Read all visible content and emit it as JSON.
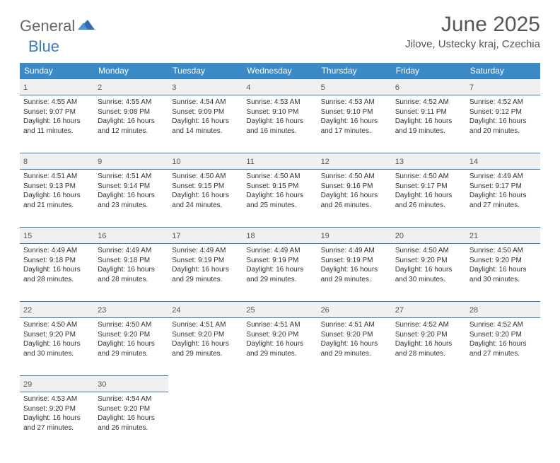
{
  "logo": {
    "general": "General",
    "blue": "Blue"
  },
  "title": "June 2025",
  "location": "Jilove, Ustecky kraj, Czechia",
  "colors": {
    "header_bg": "#3a8ac7",
    "header_text": "#ffffff",
    "daynum_bg": "#eef0f1",
    "border": "#3a7cb0",
    "logo_blue": "#3a7cc0",
    "text": "#333333"
  },
  "dayNames": [
    "Sunday",
    "Monday",
    "Tuesday",
    "Wednesday",
    "Thursday",
    "Friday",
    "Saturday"
  ],
  "weeks": [
    [
      {
        "n": "1",
        "sr": "4:55 AM",
        "ss": "9:07 PM",
        "dl": "16 hours and 11 minutes."
      },
      {
        "n": "2",
        "sr": "4:55 AM",
        "ss": "9:08 PM",
        "dl": "16 hours and 12 minutes."
      },
      {
        "n": "3",
        "sr": "4:54 AM",
        "ss": "9:09 PM",
        "dl": "16 hours and 14 minutes."
      },
      {
        "n": "4",
        "sr": "4:53 AM",
        "ss": "9:10 PM",
        "dl": "16 hours and 16 minutes."
      },
      {
        "n": "5",
        "sr": "4:53 AM",
        "ss": "9:10 PM",
        "dl": "16 hours and 17 minutes."
      },
      {
        "n": "6",
        "sr": "4:52 AM",
        "ss": "9:11 PM",
        "dl": "16 hours and 19 minutes."
      },
      {
        "n": "7",
        "sr": "4:52 AM",
        "ss": "9:12 PM",
        "dl": "16 hours and 20 minutes."
      }
    ],
    [
      {
        "n": "8",
        "sr": "4:51 AM",
        "ss": "9:13 PM",
        "dl": "16 hours and 21 minutes."
      },
      {
        "n": "9",
        "sr": "4:51 AM",
        "ss": "9:14 PM",
        "dl": "16 hours and 23 minutes."
      },
      {
        "n": "10",
        "sr": "4:50 AM",
        "ss": "9:15 PM",
        "dl": "16 hours and 24 minutes."
      },
      {
        "n": "11",
        "sr": "4:50 AM",
        "ss": "9:15 PM",
        "dl": "16 hours and 25 minutes."
      },
      {
        "n": "12",
        "sr": "4:50 AM",
        "ss": "9:16 PM",
        "dl": "16 hours and 26 minutes."
      },
      {
        "n": "13",
        "sr": "4:50 AM",
        "ss": "9:17 PM",
        "dl": "16 hours and 26 minutes."
      },
      {
        "n": "14",
        "sr": "4:49 AM",
        "ss": "9:17 PM",
        "dl": "16 hours and 27 minutes."
      }
    ],
    [
      {
        "n": "15",
        "sr": "4:49 AM",
        "ss": "9:18 PM",
        "dl": "16 hours and 28 minutes."
      },
      {
        "n": "16",
        "sr": "4:49 AM",
        "ss": "9:18 PM",
        "dl": "16 hours and 28 minutes."
      },
      {
        "n": "17",
        "sr": "4:49 AM",
        "ss": "9:19 PM",
        "dl": "16 hours and 29 minutes."
      },
      {
        "n": "18",
        "sr": "4:49 AM",
        "ss": "9:19 PM",
        "dl": "16 hours and 29 minutes."
      },
      {
        "n": "19",
        "sr": "4:49 AM",
        "ss": "9:19 PM",
        "dl": "16 hours and 29 minutes."
      },
      {
        "n": "20",
        "sr": "4:50 AM",
        "ss": "9:20 PM",
        "dl": "16 hours and 30 minutes."
      },
      {
        "n": "21",
        "sr": "4:50 AM",
        "ss": "9:20 PM",
        "dl": "16 hours and 30 minutes."
      }
    ],
    [
      {
        "n": "22",
        "sr": "4:50 AM",
        "ss": "9:20 PM",
        "dl": "16 hours and 30 minutes."
      },
      {
        "n": "23",
        "sr": "4:50 AM",
        "ss": "9:20 PM",
        "dl": "16 hours and 29 minutes."
      },
      {
        "n": "24",
        "sr": "4:51 AM",
        "ss": "9:20 PM",
        "dl": "16 hours and 29 minutes."
      },
      {
        "n": "25",
        "sr": "4:51 AM",
        "ss": "9:20 PM",
        "dl": "16 hours and 29 minutes."
      },
      {
        "n": "26",
        "sr": "4:51 AM",
        "ss": "9:20 PM",
        "dl": "16 hours and 29 minutes."
      },
      {
        "n": "27",
        "sr": "4:52 AM",
        "ss": "9:20 PM",
        "dl": "16 hours and 28 minutes."
      },
      {
        "n": "28",
        "sr": "4:52 AM",
        "ss": "9:20 PM",
        "dl": "16 hours and 27 minutes."
      }
    ],
    [
      {
        "n": "29",
        "sr": "4:53 AM",
        "ss": "9:20 PM",
        "dl": "16 hours and 27 minutes."
      },
      {
        "n": "30",
        "sr": "4:54 AM",
        "ss": "9:20 PM",
        "dl": "16 hours and 26 minutes."
      },
      null,
      null,
      null,
      null,
      null
    ]
  ],
  "labels": {
    "sunrise": "Sunrise: ",
    "sunset": "Sunset: ",
    "daylight": "Daylight: "
  }
}
